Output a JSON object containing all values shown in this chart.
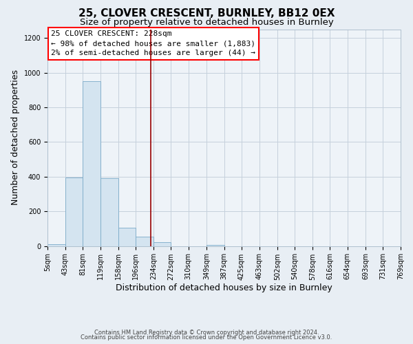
{
  "title": "25, CLOVER CRESCENT, BURNLEY, BB12 0EX",
  "subtitle": "Size of property relative to detached houses in Burnley",
  "xlabel": "Distribution of detached houses by size in Burnley",
  "ylabel": "Number of detached properties",
  "bar_edges": [
    5,
    43,
    81,
    119,
    158,
    196,
    234,
    272,
    310,
    349,
    387,
    425,
    463,
    502,
    540,
    578,
    616,
    654,
    693,
    731,
    769
  ],
  "bar_heights": [
    10,
    395,
    950,
    390,
    105,
    55,
    20,
    0,
    0,
    5,
    0,
    0,
    0,
    0,
    0,
    0,
    0,
    0,
    0,
    0
  ],
  "bar_color": "#d4e4f0",
  "bar_edgecolor": "#7aaac8",
  "vline_x": 228,
  "vline_color": "#990000",
  "annotation_title": "25 CLOVER CRESCENT: 228sqm",
  "annotation_line1": "← 98% of detached houses are smaller (1,883)",
  "annotation_line2": "2% of semi-detached houses are larger (44) →",
  "xlim": [
    5,
    769
  ],
  "ylim": [
    0,
    1250
  ],
  "yticks": [
    0,
    200,
    400,
    600,
    800,
    1000,
    1200
  ],
  "xtick_labels": [
    "5sqm",
    "43sqm",
    "81sqm",
    "119sqm",
    "158sqm",
    "196sqm",
    "234sqm",
    "272sqm",
    "310sqm",
    "349sqm",
    "387sqm",
    "425sqm",
    "463sqm",
    "502sqm",
    "540sqm",
    "578sqm",
    "616sqm",
    "654sqm",
    "693sqm",
    "731sqm",
    "769sqm"
  ],
  "footer1": "Contains HM Land Registry data © Crown copyright and database right 2024.",
  "footer2": "Contains public sector information licensed under the Open Government Licence v3.0.",
  "bg_color": "#e8eef4",
  "plot_bg_color": "#eef3f8",
  "grid_color": "#c5d0dc",
  "title_fontsize": 11,
  "subtitle_fontsize": 9.5,
  "axis_label_fontsize": 9,
  "tick_fontsize": 7,
  "annotation_fontsize": 8,
  "footer_fontsize": 6
}
